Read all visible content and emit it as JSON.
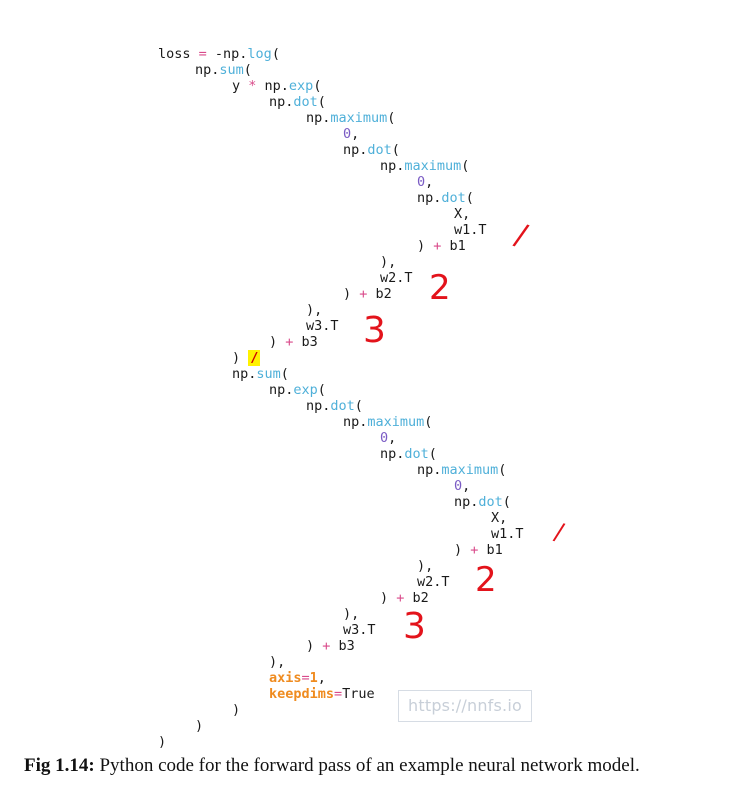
{
  "code": {
    "lines": [
      {
        "tokens": [
          {
            "t": "loss "
          },
          {
            "t": "=",
            "c": "op"
          },
          {
            "t": " -np."
          },
          {
            "t": "log",
            "c": "fn"
          },
          {
            "t": "("
          }
        ]
      },
      {
        "tokens": [
          {
            "t": "np."
          },
          {
            "t": "sum",
            "c": "fn"
          },
          {
            "t": "("
          }
        ]
      },
      {
        "tokens": [
          {
            "t": "y "
          },
          {
            "t": "*",
            "c": "op"
          },
          {
            "t": " np."
          },
          {
            "t": "exp",
            "c": "fn"
          },
          {
            "t": "("
          }
        ]
      },
      {
        "tokens": [
          {
            "t": "np."
          },
          {
            "t": "dot",
            "c": "fn"
          },
          {
            "t": "("
          }
        ]
      },
      {
        "tokens": [
          {
            "t": "np."
          },
          {
            "t": "maximum",
            "c": "fn"
          },
          {
            "t": "("
          }
        ]
      },
      {
        "tokens": [
          {
            "t": "0",
            "c": "num"
          },
          {
            "t": ","
          }
        ]
      },
      {
        "tokens": [
          {
            "t": "np."
          },
          {
            "t": "dot",
            "c": "fn"
          },
          {
            "t": "("
          }
        ]
      },
      {
        "tokens": [
          {
            "t": "np."
          },
          {
            "t": "maximum",
            "c": "fn"
          },
          {
            "t": "("
          }
        ]
      },
      {
        "tokens": [
          {
            "t": "0",
            "c": "num"
          },
          {
            "t": ","
          }
        ]
      },
      {
        "tokens": [
          {
            "t": "np."
          },
          {
            "t": "dot",
            "c": "fn"
          },
          {
            "t": "("
          }
        ]
      },
      {
        "tokens": [
          {
            "t": "X,"
          }
        ]
      },
      {
        "tokens": [
          {
            "t": "w1.T"
          }
        ]
      },
      {
        "tokens": [
          {
            "t": ") "
          },
          {
            "t": "+",
            "c": "op"
          },
          {
            "t": " b1"
          }
        ]
      },
      {
        "tokens": [
          {
            "t": "),"
          }
        ]
      },
      {
        "tokens": [
          {
            "t": "w2.T"
          }
        ]
      },
      {
        "tokens": [
          {
            "t": ") "
          },
          {
            "t": "+",
            "c": "op"
          },
          {
            "t": " b2"
          }
        ]
      },
      {
        "tokens": [
          {
            "t": "),"
          }
        ]
      },
      {
        "tokens": [
          {
            "t": "w3.T"
          }
        ]
      },
      {
        "tokens": [
          {
            "t": ") "
          },
          {
            "t": "+",
            "c": "op"
          },
          {
            "t": " b3"
          }
        ]
      },
      {
        "tokens": [
          {
            "t": ") "
          },
          {
            "t": "/",
            "c": "hl"
          }
        ]
      },
      {
        "tokens": [
          {
            "t": "np."
          },
          {
            "t": "sum",
            "c": "fn"
          },
          {
            "t": "("
          }
        ]
      },
      {
        "tokens": [
          {
            "t": "np."
          },
          {
            "t": "exp",
            "c": "fn"
          },
          {
            "t": "("
          }
        ]
      },
      {
        "tokens": [
          {
            "t": "np."
          },
          {
            "t": "dot",
            "c": "fn"
          },
          {
            "t": "("
          }
        ]
      },
      {
        "tokens": [
          {
            "t": "np."
          },
          {
            "t": "maximum",
            "c": "fn"
          },
          {
            "t": "("
          }
        ]
      },
      {
        "tokens": [
          {
            "t": "0",
            "c": "num"
          },
          {
            "t": ","
          }
        ]
      },
      {
        "tokens": [
          {
            "t": "np."
          },
          {
            "t": "dot",
            "c": "fn"
          },
          {
            "t": "("
          }
        ]
      },
      {
        "tokens": [
          {
            "t": "np."
          },
          {
            "t": "maximum",
            "c": "fn"
          },
          {
            "t": "("
          }
        ]
      },
      {
        "tokens": [
          {
            "t": "0",
            "c": "num"
          },
          {
            "t": ","
          }
        ]
      },
      {
        "tokens": [
          {
            "t": "np."
          },
          {
            "t": "dot",
            "c": "fn"
          },
          {
            "t": "("
          }
        ]
      },
      {
        "tokens": [
          {
            "t": "X,"
          }
        ]
      },
      {
        "tokens": [
          {
            "t": "w1.T"
          }
        ]
      },
      {
        "tokens": [
          {
            "t": ") "
          },
          {
            "t": "+",
            "c": "op"
          },
          {
            "t": " b1"
          }
        ]
      },
      {
        "tokens": [
          {
            "t": "),"
          }
        ]
      },
      {
        "tokens": [
          {
            "t": "w2.T"
          }
        ]
      },
      {
        "tokens": [
          {
            "t": ") "
          },
          {
            "t": "+",
            "c": "op"
          },
          {
            "t": " b2"
          }
        ]
      },
      {
        "tokens": [
          {
            "t": "),"
          }
        ]
      },
      {
        "tokens": [
          {
            "t": "w3.T"
          }
        ]
      },
      {
        "tokens": [
          {
            "t": ") "
          },
          {
            "t": "+",
            "c": "op"
          },
          {
            "t": " b3"
          }
        ]
      },
      {
        "tokens": [
          {
            "t": "),"
          }
        ]
      },
      {
        "tokens": [
          {
            "t": "axis",
            "c": "kw"
          },
          {
            "t": "=",
            "c": "op"
          },
          {
            "t": "1",
            "c": "kw"
          },
          {
            "t": ","
          }
        ]
      },
      {
        "tokens": [
          {
            "t": "keepdims",
            "c": "kw"
          },
          {
            "t": "=",
            "c": "op"
          },
          {
            "t": "True"
          }
        ]
      },
      {
        "tokens": [
          {
            "t": ")"
          }
        ]
      },
      {
        "tokens": [
          {
            "t": ")"
          }
        ]
      },
      {
        "tokens": [
          {
            "t": ")"
          }
        ]
      }
    ]
  },
  "annotations": [
    "/",
    "2",
    "3",
    "/",
    "2",
    "3"
  ],
  "watermark": "https://nnfs.io",
  "caption": {
    "label": "Fig 1.14:",
    "text": " Python code for the forward pass of an example neural network model."
  },
  "colors": {
    "function": "#4fb0d9",
    "operator": "#d94a8a",
    "number": "#7a5bc4",
    "keyword": "#ef8b1f",
    "highlight": "#fff200",
    "handwriting": "#e3131b"
  }
}
